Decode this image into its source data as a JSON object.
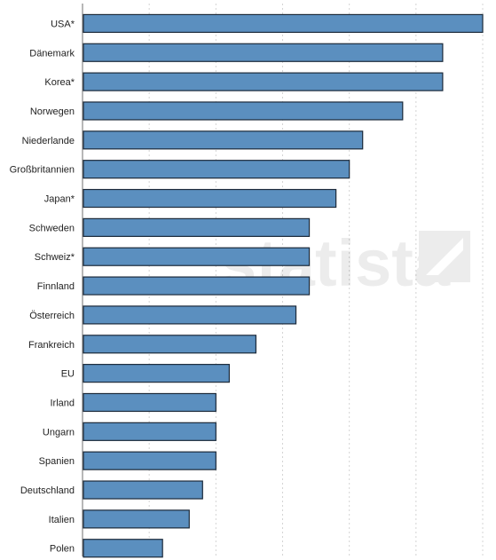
{
  "chart_data": {
    "type": "bar",
    "orientation": "horizontal",
    "categories": [
      "USA*",
      "Dänemark",
      "Korea*",
      "Norwegen",
      "Niederlande",
      "Großbritannien",
      "Japan*",
      "Schweden",
      "Schweiz*",
      "Finnland",
      "Österreich",
      "Frankreich",
      "EU",
      "Irland",
      "Ungarn",
      "Spanien",
      "Deutschland",
      "Italien",
      "Polen"
    ],
    "values": [
      30,
      27,
      27,
      24,
      21,
      20,
      19,
      17,
      17,
      17,
      16,
      13,
      11,
      10,
      10,
      10,
      9,
      8,
      6
    ],
    "xlim": [
      0,
      30
    ],
    "grid": true,
    "bar_color": "#5b8fbf",
    "title": "",
    "xlabel": "",
    "ylabel": ""
  },
  "watermark": {
    "brand": "statista"
  }
}
